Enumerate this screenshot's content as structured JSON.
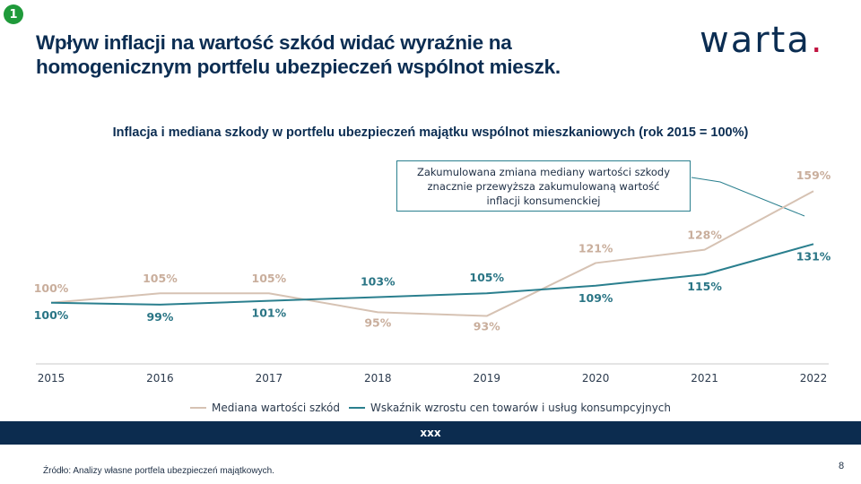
{
  "slide_badge": "1",
  "title_lines": [
    "Wpływ inflacji na wartość szkód widać wyraźnie na",
    "homogenicznym portfelu ubezpieczeń wspólnot mieszk."
  ],
  "logo": {
    "text": "warta",
    "dot": ".",
    "dot_color": "#c0133f"
  },
  "annotation_lines": [
    "Zakumulowana  zmiana mediany wartości szkody",
    "znacznie przewyższa zakumulowaną wartość",
    "inflacji konsumenckiej"
  ],
  "footer_bar": "xxx",
  "source": "Źródło: Analizy własne portfela ubezpieczeń majątkowych.",
  "page_number": "8",
  "chart_data": {
    "type": "line",
    "title": "Inflacja i mediana szkody w portfelu ubezpieczeń  majątku wspólnot mieszkaniowych (rok 2015 = 100%)",
    "x": [
      "2015",
      "2016",
      "2017",
      "2018",
      "2019",
      "2020",
      "2021",
      "2022"
    ],
    "ylim": [
      80,
      170
    ],
    "grid": false,
    "legend_position": "bottom",
    "series": [
      {
        "name": "Mediana wartości  szkód",
        "color": "#d6c2b3",
        "label_color": "#c9ae9c",
        "values": [
          100,
          105,
          105,
          95,
          93,
          121,
          128,
          159
        ],
        "labels": [
          "100%",
          "105%",
          "105%",
          "95%",
          "93%",
          "121%",
          "128%",
          "159%"
        ]
      },
      {
        "name": "Wskaźnik  wzrostu cen towarów  i usług konsumpcyjnych",
        "color": "#2a7f8e",
        "label_color": "#2a7585",
        "values": [
          100,
          99,
          101,
          103,
          105,
          109,
          115,
          131
        ],
        "labels": [
          "100%",
          "99%",
          "101%",
          "103%",
          "105%",
          "109%",
          "115%",
          "131%"
        ]
      }
    ]
  }
}
